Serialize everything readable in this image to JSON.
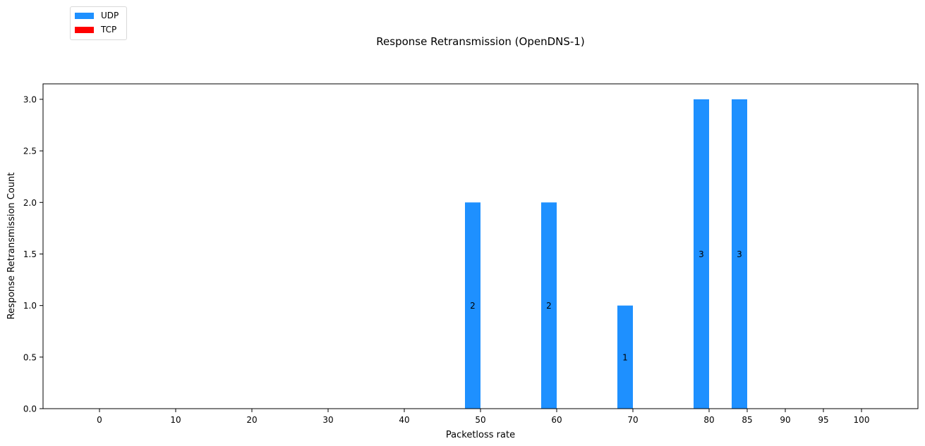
{
  "chart_data": {
    "type": "bar",
    "title": "Response Retransmission (OpenDNS-1)",
    "xlabel": "Packetloss rate",
    "ylabel": "Response Retransmission Count",
    "categories": [
      "0",
      "10",
      "20",
      "30",
      "40",
      "50",
      "60",
      "70",
      "80",
      "85",
      "90",
      "95",
      "100"
    ],
    "yticks": [
      "0.0",
      "0.5",
      "1.0",
      "1.5",
      "2.0",
      "2.5",
      "3.0"
    ],
    "ylim": [
      0,
      3.15
    ],
    "grid": false,
    "legend_position": "top-left",
    "series": [
      {
        "name": "UDP",
        "color": "#1e90ff",
        "values": [
          0,
          0,
          0,
          0,
          0,
          2,
          2,
          1,
          3,
          3,
          0,
          0,
          0
        ],
        "labels": [
          "",
          "",
          "",
          "",
          "",
          "2",
          "2",
          "1",
          "3",
          "3",
          "",
          "",
          ""
        ]
      },
      {
        "name": "TCP",
        "color": "#ff0000",
        "values": [
          0,
          0,
          0,
          0,
          0,
          0,
          0,
          0,
          0,
          0,
          0,
          0,
          0
        ],
        "labels": [
          "",
          "",
          "",
          "",
          "",
          "",
          "",
          "",
          "",
          "",
          "",
          "",
          ""
        ]
      }
    ]
  }
}
